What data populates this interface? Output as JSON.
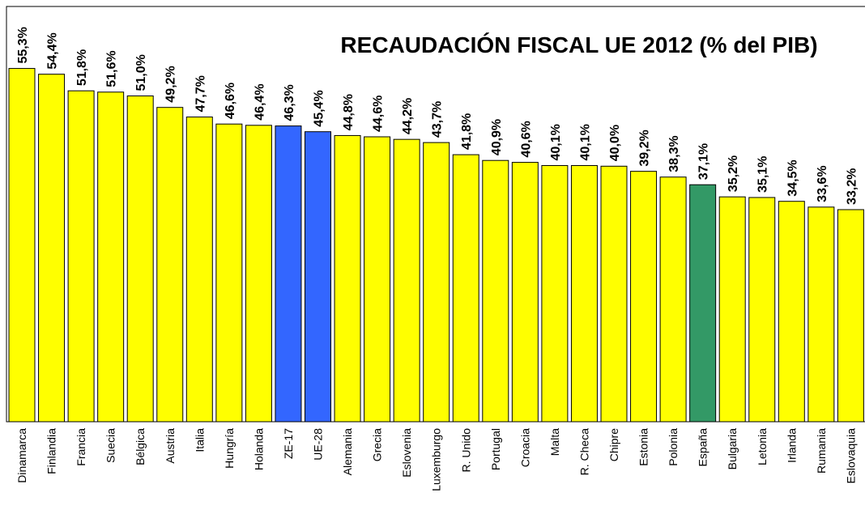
{
  "chart_data": {
    "type": "bar",
    "title": "RECAUDACIÓN FISCAL UE 2012 (% del PIB)",
    "categories": [
      "Dinamarca",
      "Finlandia",
      "Francia",
      "Suecia",
      "Bélgica",
      "Austria",
      "Italia",
      "Hungría",
      "Holanda",
      "ZE-17",
      "UE-28",
      "Alemania",
      "Grecia",
      "Eslovenia",
      "Luxemburgo",
      "R. Unido",
      "Portugal",
      "Croacia",
      "Malta",
      "R. Checa",
      "Chipre",
      "Estonia",
      "Polonia",
      "España",
      "Bulgaria",
      "Letonia",
      "Irlanda",
      "Rumania",
      "Eslovaquia"
    ],
    "values": [
      55.3,
      54.4,
      51.8,
      51.6,
      51.0,
      49.2,
      47.7,
      46.6,
      46.4,
      46.3,
      45.4,
      44.8,
      44.6,
      44.2,
      43.7,
      41.8,
      40.9,
      40.6,
      40.1,
      40.1,
      40.0,
      39.2,
      38.3,
      37.1,
      35.2,
      35.1,
      34.5,
      33.6,
      33.2
    ],
    "value_labels": [
      "55,3%",
      "54,4%",
      "51,8%",
      "51,6%",
      "51,0%",
      "49,2%",
      "47,7%",
      "46,6%",
      "46,4%",
      "46,3%",
      "45,4%",
      "44,8%",
      "44,6%",
      "44,2%",
      "43,7%",
      "41,8%",
      "40,9%",
      "40,6%",
      "40,1%",
      "40,1%",
      "40,0%",
      "39,2%",
      "38,3%",
      "37,1%",
      "35,2%",
      "35,1%",
      "34,5%",
      "33,6%",
      "33,2%"
    ],
    "colors": [
      "#ffff00",
      "#ffff00",
      "#ffff00",
      "#ffff00",
      "#ffff00",
      "#ffff00",
      "#ffff00",
      "#ffff00",
      "#ffff00",
      "#3366ff",
      "#3366ff",
      "#ffff00",
      "#ffff00",
      "#ffff00",
      "#ffff00",
      "#ffff00",
      "#ffff00",
      "#ffff00",
      "#ffff00",
      "#ffff00",
      "#ffff00",
      "#ffff00",
      "#ffff00",
      "#339966",
      "#ffff00",
      "#ffff00",
      "#ffff00",
      "#ffff00",
      "#ffff00"
    ],
    "ylim": [
      0,
      65
    ]
  }
}
